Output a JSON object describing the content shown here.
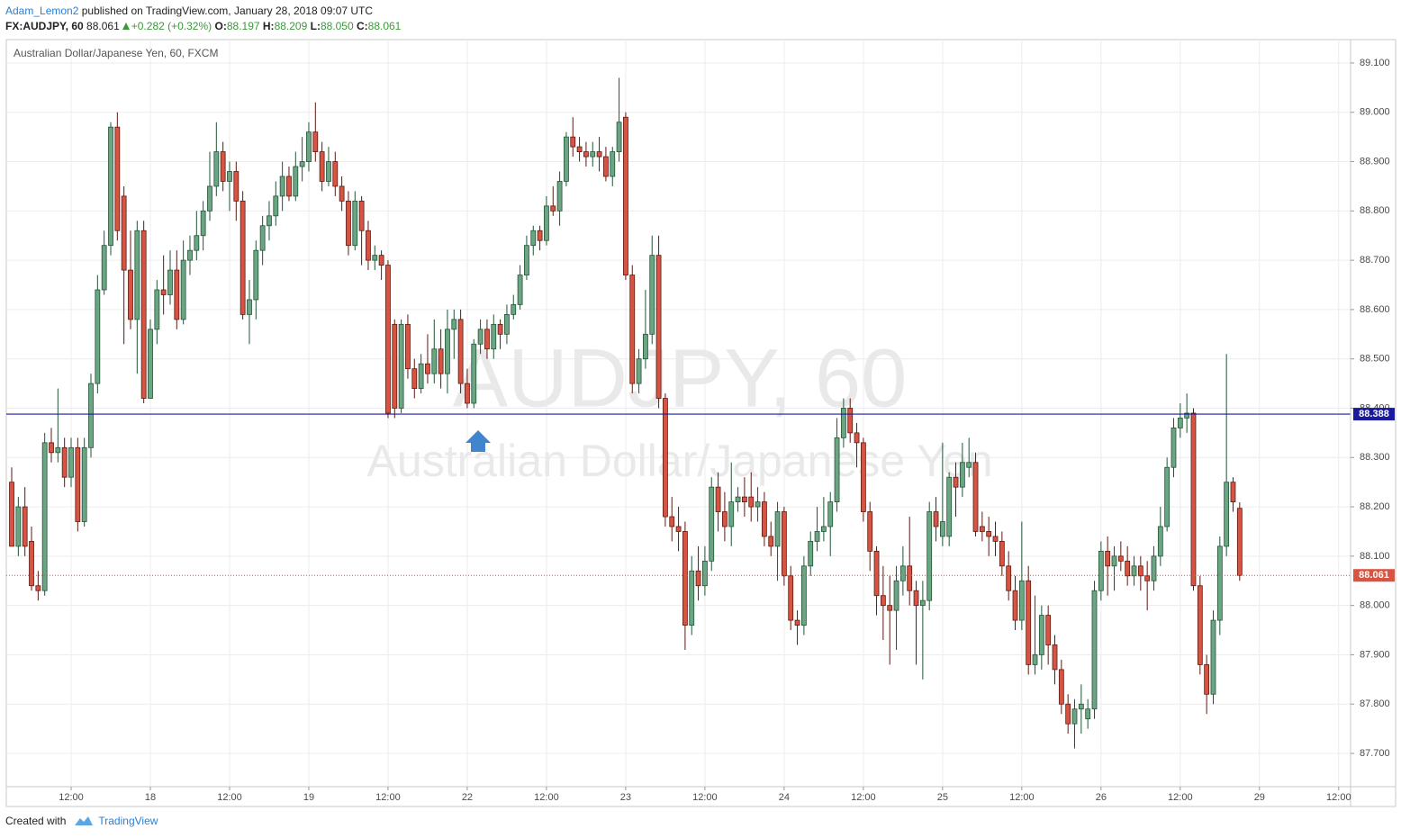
{
  "header": {
    "author": "Adam_Lemon2",
    "published": "published on TradingView.com, January 28, 2018 09:07 UTC",
    "symbol": "FX:AUDJPY, 60",
    "price": "88.061",
    "change": "+0.282 (+0.32%)",
    "o_label": "O:",
    "o": "88.197",
    "h_label": "H:",
    "h": "88.209",
    "l_label": "L:",
    "l": "88.050",
    "c_label": "C:",
    "c": "88.061"
  },
  "footer": {
    "created": "Created with",
    "brand": "TradingView"
  },
  "chart_data": {
    "type": "candlestick",
    "title": "Australian Dollar/Japanese Yen, 60, FXCM",
    "watermark": [
      "AUDJPY, 60",
      "Australian Dollar/Japanese Yen"
    ],
    "up_color": "#6ba583",
    "up_border": "#225437",
    "down_color": "#d75442",
    "down_border": "#5b1a13",
    "grid": true,
    "ylim": [
      87.6325,
      89.1474
    ],
    "yticks": [
      {
        "value": 89.1,
        "label": "89.100"
      },
      {
        "value": 89.0,
        "label": "89.000"
      },
      {
        "value": 88.9,
        "label": "88.900"
      },
      {
        "value": 88.8,
        "label": "88.800"
      },
      {
        "value": 88.7,
        "label": "88.700"
      },
      {
        "value": 88.6,
        "label": "88.600"
      },
      {
        "value": 88.5,
        "label": "88.500"
      },
      {
        "value": 88.4,
        "label": "88.400"
      },
      {
        "value": 88.3,
        "label": "88.300"
      },
      {
        "value": 88.2,
        "label": "88.200"
      },
      {
        "value": 88.1,
        "label": "88.100"
      },
      {
        "value": 88.0,
        "label": "88.000"
      },
      {
        "value": 87.9,
        "label": "87.900"
      },
      {
        "value": 87.8,
        "label": "87.800"
      },
      {
        "value": 87.7,
        "label": "87.700"
      }
    ],
    "xlim": [
      -0.82,
      202.8
    ],
    "xticks": [
      {
        "value": 9,
        "label": "12:00"
      },
      {
        "value": 21,
        "label": "18"
      },
      {
        "value": 33,
        "label": "12:00"
      },
      {
        "value": 45,
        "label": "19"
      },
      {
        "value": 57,
        "label": "12:00"
      },
      {
        "value": 69,
        "label": "22"
      },
      {
        "value": 81,
        "label": "12:00"
      },
      {
        "value": 93,
        "label": "23"
      },
      {
        "value": 105,
        "label": "12:00"
      },
      {
        "value": 117,
        "label": "24"
      },
      {
        "value": 129,
        "label": "12:00"
      },
      {
        "value": 141,
        "label": "25"
      },
      {
        "value": 153,
        "label": "12:00"
      },
      {
        "value": 165,
        "label": "26"
      },
      {
        "value": 177,
        "label": "12:00"
      },
      {
        "value": 189,
        "label": "29"
      },
      {
        "value": 201,
        "label": "12:00"
      }
    ],
    "hlines": [
      {
        "value": 88.388,
        "color": "#1a1a9e"
      }
    ],
    "last_color": "#d75442",
    "open": [
      88.25,
      88.12,
      88.2,
      88.13,
      88.04,
      88.03,
      88.33,
      88.31,
      88.32,
      88.26,
      88.32,
      88.17,
      88.32,
      88.45,
      88.64,
      88.73,
      88.97,
      88.83,
      88.68,
      88.58,
      88.76,
      88.42,
      88.56,
      88.64,
      88.63,
      88.68,
      88.58,
      88.7,
      88.72,
      88.75,
      88.8,
      88.85,
      88.92,
      88.86,
      88.88,
      88.82,
      88.59,
      88.62,
      88.72,
      88.77,
      88.79,
      88.83,
      88.87,
      88.83,
      88.89,
      88.9,
      88.96,
      88.92,
      88.86,
      88.9,
      88.85,
      88.82,
      88.73,
      88.82,
      88.76,
      88.7,
      88.71,
      88.69,
      88.57,
      88.4,
      88.57,
      88.48,
      88.44,
      88.49,
      88.47,
      88.52,
      88.47,
      88.56,
      88.58,
      88.45,
      88.41,
      88.53,
      88.56,
      88.52,
      88.57,
      88.55,
      88.59,
      88.61,
      88.67,
      88.73,
      88.76,
      88.74,
      88.81,
      88.8,
      88.86,
      88.95,
      88.93,
      88.92,
      88.91,
      88.92,
      88.91,
      88.87,
      88.92,
      88.99,
      88.67,
      88.45,
      88.5,
      88.55,
      88.71,
      88.42,
      88.18,
      88.16,
      88.15,
      87.96,
      88.07,
      88.04,
      88.09,
      88.24,
      88.19,
      88.16,
      88.21,
      88.22,
      88.22,
      88.2,
      88.21,
      88.14,
      88.12,
      88.19,
      88.06,
      87.97,
      87.96,
      88.08,
      88.13,
      88.15,
      88.16,
      88.21,
      88.34,
      88.4,
      88.35,
      88.33,
      88.19,
      88.11,
      88.02,
      88.0,
      87.99,
      88.05,
      88.08,
      88.03,
      88.0,
      88.01,
      88.19,
      88.14,
      88.14,
      88.26,
      88.24,
      88.28,
      88.29,
      88.16,
      88.15,
      88.14,
      88.13,
      88.08,
      88.03,
      87.97,
      88.05,
      87.88,
      87.9,
      87.98,
      87.92,
      87.87,
      87.8,
      87.76,
      87.79,
      87.77,
      87.79,
      88.03,
      88.11,
      88.08,
      88.1,
      88.09,
      88.06,
      88.08,
      88.06,
      88.05,
      88.1,
      88.16,
      88.28,
      88.36,
      88.38,
      88.39,
      88.04,
      87.88,
      87.82,
      87.97,
      88.12,
      88.25,
      88.197
    ],
    "high": [
      88.28,
      88.22,
      88.24,
      88.16,
      88.07,
      88.35,
      88.36,
      88.44,
      88.34,
      88.34,
      88.34,
      88.34,
      88.47,
      88.67,
      88.76,
      88.98,
      89.0,
      88.85,
      88.76,
      88.78,
      88.78,
      88.58,
      88.66,
      88.71,
      88.72,
      88.72,
      88.74,
      88.75,
      88.8,
      88.82,
      88.92,
      88.98,
      88.94,
      88.9,
      88.9,
      88.84,
      88.66,
      88.74,
      88.79,
      88.82,
      88.86,
      88.9,
      88.89,
      88.92,
      88.95,
      88.98,
      89.02,
      88.94,
      88.93,
      88.92,
      88.87,
      88.84,
      88.84,
      88.83,
      88.78,
      88.73,
      88.72,
      88.7,
      88.58,
      88.58,
      88.59,
      88.5,
      88.51,
      88.55,
      88.58,
      88.56,
      88.6,
      88.6,
      88.6,
      88.48,
      88.54,
      88.58,
      88.58,
      88.59,
      88.58,
      88.61,
      88.63,
      88.69,
      88.75,
      88.77,
      88.77,
      88.83,
      88.85,
      88.88,
      88.96,
      88.99,
      88.95,
      88.94,
      88.94,
      88.95,
      88.93,
      88.93,
      89.07,
      89.0,
      88.69,
      88.52,
      88.64,
      88.75,
      88.75,
      88.43,
      88.22,
      88.2,
      88.17,
      88.1,
      88.12,
      88.12,
      88.26,
      88.27,
      88.23,
      88.29,
      88.24,
      88.26,
      88.27,
      88.24,
      88.23,
      88.17,
      88.21,
      88.2,
      88.08,
      87.99,
      88.1,
      88.15,
      88.2,
      88.22,
      88.23,
      88.38,
      88.42,
      88.42,
      88.37,
      88.34,
      88.21,
      88.12,
      88.08,
      88.06,
      88.08,
      88.12,
      88.18,
      88.05,
      88.05,
      88.21,
      88.22,
      88.33,
      88.27,
      88.29,
      88.33,
      88.34,
      88.31,
      88.19,
      88.18,
      88.17,
      88.15,
      88.11,
      88.06,
      88.17,
      88.08,
      88.02,
      88.0,
      88.0,
      87.94,
      87.89,
      87.82,
      87.81,
      87.84,
      87.81,
      88.05,
      88.13,
      88.14,
      88.12,
      88.13,
      88.12,
      88.1,
      88.1,
      88.09,
      88.12,
      88.2,
      88.3,
      88.38,
      88.41,
      88.43,
      88.4,
      88.06,
      87.9,
      87.99,
      88.14,
      88.51,
      88.26,
      88.209
    ],
    "low": [
      88.12,
      88.1,
      88.1,
      88.03,
      88.01,
      88.02,
      88.29,
      88.29,
      88.24,
      88.24,
      88.15,
      88.16,
      88.3,
      88.43,
      88.63,
      88.71,
      88.74,
      88.53,
      88.56,
      88.47,
      88.41,
      88.42,
      88.53,
      88.59,
      88.61,
      88.56,
      88.57,
      88.67,
      88.7,
      88.72,
      88.78,
      88.83,
      88.84,
      88.8,
      88.78,
      88.58,
      88.53,
      88.58,
      88.69,
      88.74,
      88.77,
      88.8,
      88.82,
      88.82,
      88.86,
      88.88,
      88.9,
      88.84,
      88.85,
      88.83,
      88.8,
      88.71,
      88.72,
      88.69,
      88.68,
      88.68,
      88.66,
      88.38,
      88.38,
      88.39,
      88.46,
      88.42,
      88.43,
      88.45,
      88.45,
      88.44,
      88.43,
      88.5,
      88.43,
      88.4,
      88.4,
      88.51,
      88.5,
      88.5,
      88.52,
      88.53,
      88.58,
      88.6,
      88.66,
      88.71,
      88.72,
      88.73,
      88.79,
      88.77,
      88.85,
      88.91,
      88.9,
      88.89,
      88.89,
      88.88,
      88.86,
      88.85,
      88.9,
      88.66,
      88.43,
      88.43,
      88.48,
      88.53,
      88.4,
      88.16,
      88.13,
      88.11,
      87.91,
      87.94,
      88.01,
      88.02,
      88.07,
      88.15,
      88.13,
      88.12,
      88.19,
      88.18,
      88.17,
      88.17,
      88.12,
      88.1,
      88.05,
      88.04,
      87.95,
      87.92,
      87.94,
      88.06,
      88.11,
      88.13,
      88.1,
      88.19,
      88.32,
      88.33,
      88.28,
      88.17,
      88.07,
      87.98,
      87.93,
      87.88,
      87.91,
      88.02,
      88.0,
      87.88,
      87.85,
      87.99,
      88.13,
      88.12,
      88.12,
      88.18,
      88.22,
      88.26,
      88.14,
      88.13,
      88.1,
      88.1,
      88.06,
      88.01,
      87.95,
      87.95,
      87.86,
      87.86,
      87.87,
      87.88,
      87.84,
      87.78,
      87.74,
      87.71,
      87.74,
      87.75,
      87.77,
      88.01,
      88.02,
      88.03,
      88.07,
      88.04,
      88.04,
      88.03,
      87.99,
      88.03,
      88.08,
      88.15,
      88.26,
      88.34,
      88.35,
      88.03,
      87.86,
      87.78,
      87.8,
      87.94,
      88.1,
      88.19,
      88.05
    ],
    "close": [
      88.12,
      88.2,
      88.12,
      88.04,
      88.03,
      88.33,
      88.31,
      88.32,
      88.26,
      88.32,
      88.17,
      88.32,
      88.45,
      88.64,
      88.73,
      88.97,
      88.76,
      88.68,
      88.58,
      88.76,
      88.42,
      88.56,
      88.64,
      88.63,
      88.68,
      88.58,
      88.7,
      88.72,
      88.75,
      88.8,
      88.85,
      88.92,
      88.86,
      88.88,
      88.82,
      88.59,
      88.62,
      88.72,
      88.77,
      88.79,
      88.83,
      88.87,
      88.83,
      88.89,
      88.9,
      88.96,
      88.92,
      88.86,
      88.9,
      88.85,
      88.82,
      88.73,
      88.82,
      88.76,
      88.7,
      88.71,
      88.69,
      88.39,
      88.4,
      88.57,
      88.48,
      88.44,
      88.49,
      88.47,
      88.52,
      88.47,
      88.56,
      88.58,
      88.45,
      88.41,
      88.53,
      88.56,
      88.52,
      88.57,
      88.55,
      88.59,
      88.61,
      88.67,
      88.73,
      88.76,
      88.74,
      88.81,
      88.8,
      88.86,
      88.95,
      88.93,
      88.92,
      88.91,
      88.92,
      88.91,
      88.87,
      88.92,
      88.98,
      88.67,
      88.45,
      88.5,
      88.55,
      88.71,
      88.42,
      88.18,
      88.16,
      88.15,
      87.96,
      88.07,
      88.04,
      88.09,
      88.24,
      88.19,
      88.16,
      88.21,
      88.22,
      88.21,
      88.2,
      88.21,
      88.14,
      88.12,
      88.19,
      88.06,
      87.97,
      87.96,
      88.08,
      88.13,
      88.15,
      88.16,
      88.21,
      88.34,
      88.4,
      88.35,
      88.33,
      88.19,
      88.11,
      88.02,
      88.0,
      87.99,
      88.05,
      88.08,
      88.03,
      88.0,
      88.01,
      88.19,
      88.16,
      88.17,
      88.26,
      88.24,
      88.29,
      88.29,
      88.15,
      88.15,
      88.14,
      88.13,
      88.08,
      88.03,
      87.97,
      88.05,
      87.88,
      87.9,
      87.98,
      87.92,
      87.87,
      87.8,
      87.76,
      87.79,
      87.8,
      87.79,
      88.03,
      88.11,
      88.08,
      88.1,
      88.09,
      88.06,
      88.08,
      88.06,
      88.05,
      88.1,
      88.16,
      88.28,
      88.36,
      88.38,
      88.39,
      88.04,
      87.88,
      87.82,
      87.97,
      88.12,
      88.25,
      88.21,
      88.061
    ]
  }
}
